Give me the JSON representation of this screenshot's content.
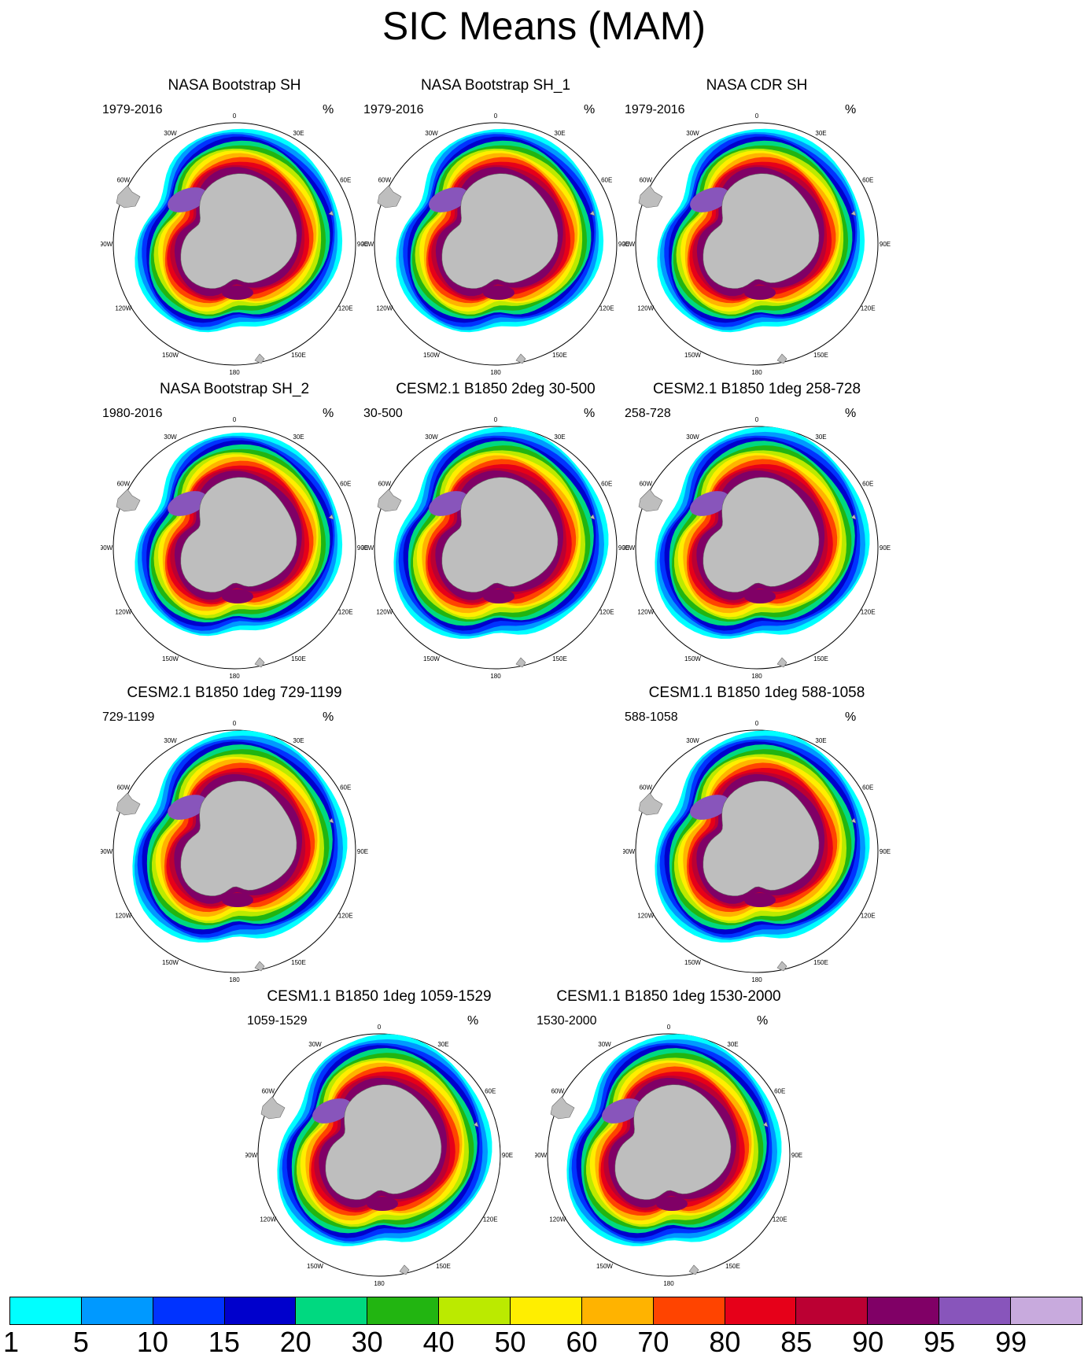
{
  "title": "SIC Means (MAM)",
  "units_label": "%",
  "grid_labels": [
    "0",
    "30E",
    "60E",
    "90E",
    "120E",
    "150E",
    "180",
    "150W",
    "120W",
    "90W",
    "60W",
    "30W"
  ],
  "panels": [
    {
      "title": "NASA Bootstrap SH",
      "period": "1979-2016",
      "style": "obs"
    },
    {
      "title": "NASA Bootstrap SH_1",
      "period": "1979-2016",
      "style": "obs"
    },
    {
      "title": "NASA CDR SH",
      "period": "1979-2016",
      "style": "obs"
    },
    {
      "title": "NASA Bootstrap SH_2",
      "period": "1980-2016",
      "style": "obs"
    },
    {
      "title": "CESM2.1 B1850 2deg 30-500",
      "period": "30-500",
      "style": "model"
    },
    {
      "title": "CESM2.1 B1850 1deg 258-728",
      "period": "258-728",
      "style": "model"
    },
    {
      "title": "CESM2.1 B1850 1deg 729-1199",
      "period": "729-1199",
      "style": "model"
    },
    {
      "title": "CESM1.1 B1850 1deg 588-1058",
      "period": "588-1058",
      "style": "model"
    },
    {
      "title": "CESM1.1 B1850 1deg 1059-1529",
      "period": "1059-1529",
      "style": "model"
    },
    {
      "title": "CESM1.1 B1850 1deg 1530-2000",
      "period": "1530-2000",
      "style": "model"
    }
  ],
  "colorbar": {
    "labels": [
      "1",
      "5",
      "10",
      "15",
      "20",
      "30",
      "40",
      "50",
      "60",
      "70",
      "80",
      "85",
      "90",
      "95",
      "99"
    ],
    "colors": [
      "#00ffff",
      "#0099ff",
      "#0033ff",
      "#0000cc",
      "#00d980",
      "#22b511",
      "#bbea00",
      "#ffee00",
      "#ffb300",
      "#ff4400",
      "#e60019",
      "#bb0033",
      "#800066",
      "#8855bb",
      "#c8aadd"
    ]
  }
}
